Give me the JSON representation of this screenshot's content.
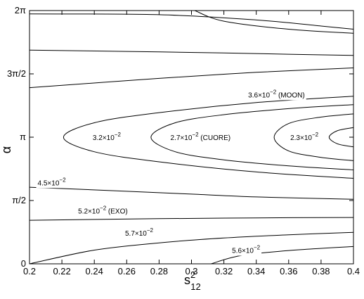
{
  "chart_data": {
    "type": "line",
    "title": "",
    "xlabel": "s",
    "xlabel_super": "2",
    "xlabel_sub": "12",
    "ylabel": "α",
    "xlim": [
      0.2,
      0.4
    ],
    "ylim": [
      0,
      6.2832
    ],
    "grid": false,
    "x_ticks": [
      {
        "value": 0.2,
        "label": "0.2"
      },
      {
        "value": 0.22,
        "label": "0.22"
      },
      {
        "value": 0.24,
        "label": "0.24"
      },
      {
        "value": 0.26,
        "label": "0.26"
      },
      {
        "value": 0.28,
        "label": "0.28"
      },
      {
        "value": 0.3,
        "label": "0.3"
      },
      {
        "value": 0.32,
        "label": "0.32"
      },
      {
        "value": 0.34,
        "label": "0.34"
      },
      {
        "value": 0.36,
        "label": "0.36"
      },
      {
        "value": 0.38,
        "label": "0.38"
      },
      {
        "value": 0.4,
        "label": "0.4"
      }
    ],
    "y_ticks": [
      {
        "value": 0,
        "label": "0"
      },
      {
        "value": 1.5708,
        "label": "π/2"
      },
      {
        "value": 3.1416,
        "label": "π"
      },
      {
        "value": 4.7124,
        "label": "3π/2"
      },
      {
        "value": 6.2832,
        "label": "2π"
      }
    ],
    "series": [
      {
        "points": [
          [
            0.2,
            6.2
          ],
          [
            0.28,
            6.18
          ],
          [
            0.34,
            6.05
          ],
          [
            0.38,
            5.9
          ],
          [
            0.4,
            5.82
          ]
        ]
      },
      {
        "points": [
          [
            0.302,
            6.2832
          ],
          [
            0.32,
            6.02
          ],
          [
            0.36,
            5.82
          ],
          [
            0.4,
            5.72
          ]
        ]
      },
      {
        "points": [
          [
            0.2,
            5.3
          ],
          [
            0.26,
            5.27
          ],
          [
            0.32,
            5.23
          ],
          [
            0.36,
            5.2
          ],
          [
            0.4,
            5.17
          ]
        ]
      },
      {
        "points": [
          [
            0.2,
            4.37
          ],
          [
            0.28,
            4.6
          ],
          [
            0.34,
            4.75
          ],
          [
            0.4,
            4.86
          ]
        ]
      },
      {
        "points": [
          [
            0.4,
            4.16
          ],
          [
            0.34,
            4.0
          ],
          [
            0.28,
            3.75
          ],
          [
            0.24,
            3.5
          ],
          [
            0.221,
            3.14
          ],
          [
            0.24,
            2.78
          ],
          [
            0.28,
            2.53
          ],
          [
            0.34,
            2.28
          ],
          [
            0.4,
            2.12
          ]
        ]
      },
      {
        "points": [
          [
            0.4,
            3.95
          ],
          [
            0.36,
            3.85
          ],
          [
            0.32,
            3.7
          ],
          [
            0.29,
            3.5
          ],
          [
            0.275,
            3.14
          ],
          [
            0.29,
            2.78
          ],
          [
            0.32,
            2.58
          ],
          [
            0.36,
            2.43
          ],
          [
            0.4,
            2.33
          ]
        ]
      },
      {
        "points": [
          [
            0.4,
            3.72
          ],
          [
            0.38,
            3.64
          ],
          [
            0.36,
            3.48
          ],
          [
            0.351,
            3.14
          ],
          [
            0.36,
            2.8
          ],
          [
            0.38,
            2.64
          ],
          [
            0.4,
            2.56
          ]
        ]
      },
      {
        "points": [
          [
            0.4,
            3.38
          ],
          [
            0.39,
            3.3
          ],
          [
            0.385,
            3.14
          ],
          [
            0.39,
            2.98
          ],
          [
            0.4,
            2.9
          ]
        ]
      },
      {
        "points": [
          [
            0.2,
            1.9
          ],
          [
            0.26,
            1.8
          ],
          [
            0.3,
            1.73
          ],
          [
            0.34,
            1.66
          ],
          [
            0.4,
            1.6
          ]
        ]
      },
      {
        "points": [
          [
            0.2,
            1.08
          ],
          [
            0.28,
            1.12
          ],
          [
            0.34,
            1.14
          ],
          [
            0.4,
            1.15
          ]
        ]
      },
      {
        "points": [
          [
            0.2,
            0.0
          ],
          [
            0.24,
            0.34
          ],
          [
            0.28,
            0.52
          ],
          [
            0.32,
            0.64
          ],
          [
            0.36,
            0.72
          ],
          [
            0.4,
            0.78
          ]
        ]
      },
      {
        "points": [
          [
            0.312,
            0.0
          ],
          [
            0.33,
            0.2
          ],
          [
            0.36,
            0.33
          ],
          [
            0.4,
            0.43
          ]
        ]
      }
    ],
    "annotations": [
      {
        "text": "3.6×10",
        "exp": "−2",
        "suffix": " (MOON)",
        "x": 0.335,
        "y": 4.2
      },
      {
        "text": "3.2×10",
        "exp": "−2",
        "suffix": "",
        "x": 0.239,
        "y": 3.14
      },
      {
        "text": "2.7×10",
        "exp": "−2",
        "suffix": "  (CUORE)",
        "x": 0.287,
        "y": 3.14
      },
      {
        "text": "2.3×10",
        "exp": "−2",
        "suffix": "",
        "x": 0.361,
        "y": 3.14
      },
      {
        "text": "4.5×10",
        "exp": "−2",
        "suffix": "",
        "x": 0.205,
        "y": 2.02
      },
      {
        "text": "5.2×10",
        "exp": "−2",
        "suffix": " (EXO)",
        "x": 0.23,
        "y": 1.32
      },
      {
        "text": "5.7×10",
        "exp": "−2",
        "suffix": "",
        "x": 0.259,
        "y": 0.77
      },
      {
        "text": "5.6×10",
        "exp": "−2",
        "suffix": "",
        "x": 0.325,
        "y": 0.34
      }
    ]
  }
}
